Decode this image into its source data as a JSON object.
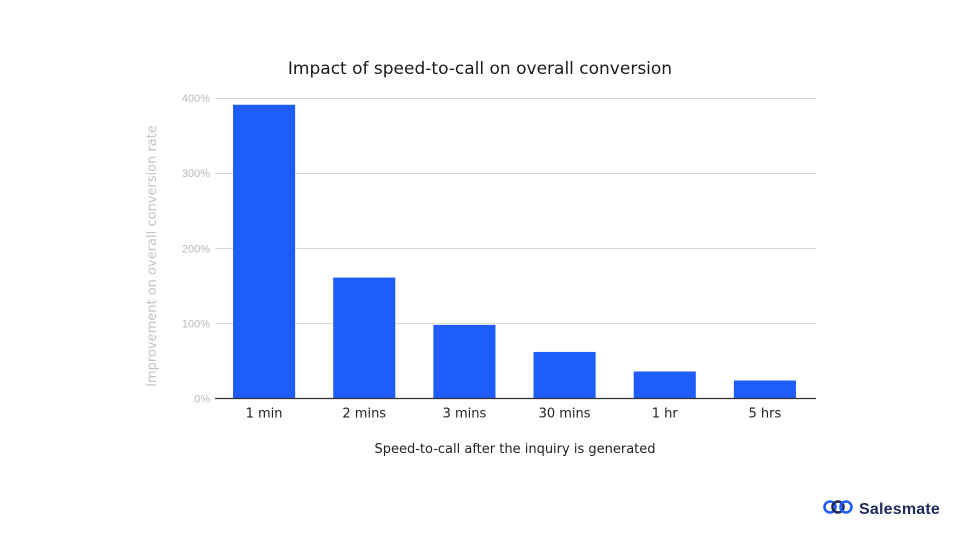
{
  "colors": {
    "bar": "#1f5dfb",
    "brand_text": "#1c2b59",
    "brand_accent": "#1f5dfb"
  },
  "brand": {
    "name": "Salesmate",
    "icon": "salesmate-logo-icon"
  },
  "chart_data": {
    "type": "bar",
    "title": "Impact of speed-to-call on overall conversion",
    "xlabel": "Speed-to-call after the inquiry is generated",
    "ylabel": "Improvement on overall conversion rate",
    "categories": [
      "1 min",
      "2 mins",
      "3 mins",
      "30 mins",
      "1 hr",
      "5 hrs"
    ],
    "values": [
      391,
      161,
      98,
      62,
      36,
      24
    ],
    "value_unit": "%",
    "ylim": [
      0,
      400
    ],
    "yticks": [
      0,
      100,
      200,
      300,
      400
    ],
    "ytick_labels": [
      "0%",
      "100%",
      "200%",
      "300%",
      "400%"
    ],
    "grid": true,
    "legend": "none"
  }
}
